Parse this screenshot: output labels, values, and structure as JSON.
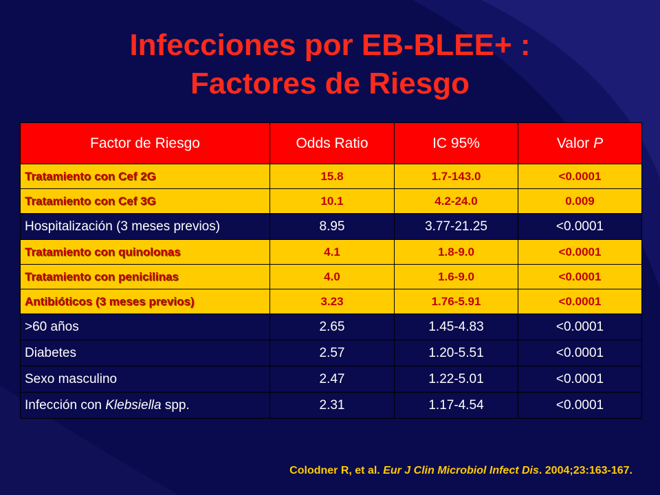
{
  "title": {
    "line1": "Infecciones por EB-BLEE+ :",
    "line2": "Factores de Riesgo"
  },
  "table": {
    "headers": {
      "factor": "Factor de Riesgo",
      "odds": "Odds Ratio",
      "ic": "IC 95%",
      "p_prefix": "Valor ",
      "p_italic": "P"
    },
    "rows": [
      {
        "factor": "Tratamiento con  Cef 2G",
        "odds": "15.8",
        "ic": "1.7-143.0",
        "p": "<0.0001",
        "highlight": true
      },
      {
        "factor": "Tratamiento con  Cef 3G",
        "odds": "10.1",
        "ic": "4.2-24.0",
        "p": "0.009",
        "highlight": true
      },
      {
        "factor": "Hospitalización (3 meses previos)",
        "odds": "8.95",
        "ic": "3.77-21.25",
        "p": "<0.0001",
        "highlight": false
      },
      {
        "factor": "Tratamiento con  quinolonas",
        "odds": "4.1",
        "ic": "1.8-9.0",
        "p": "<0.0001",
        "highlight": true
      },
      {
        "factor": "Tratamiento con  penicilinas",
        "odds": "4.0",
        "ic": "1.6-9.0",
        "p": "<0.0001",
        "highlight": true
      },
      {
        "factor": "Antibióticos (3 meses previos)",
        "odds": "3.23",
        "ic": "1.76-5.91",
        "p": "<0.0001",
        "highlight": true
      },
      {
        "factor": ">60 años",
        "odds": "2.65",
        "ic": "1.45-4.83",
        "p": "<0.0001",
        "highlight": false
      },
      {
        "factor": "Diabetes",
        "odds": "2.57",
        "ic": "1.20-5.51",
        "p": "<0.0001",
        "highlight": false
      },
      {
        "factor": "Sexo masculino",
        "odds": "2.47",
        "ic": "1.22-5.01",
        "p": "<0.0001",
        "highlight": false
      },
      {
        "factor": "Infección con ",
        "factor_italic": "Klebsiella",
        "factor_suffix": " spp.",
        "odds": "2.31",
        "ic": "1.17-4.54",
        "p": "<0.0001",
        "highlight": false
      }
    ]
  },
  "citation": {
    "authors": "Colodner R, et al. ",
    "journal": "Eur J Clin Microbiol Infect Dis",
    "rest": ". 2004;23:163-167."
  },
  "colors": {
    "background": "#0a0a4e",
    "title": "#ff2a1a",
    "header_fill": "#ff0000",
    "highlight_fill": "#ffcc00",
    "highlight_text": "#c00000",
    "citation": "#ffcc00"
  }
}
